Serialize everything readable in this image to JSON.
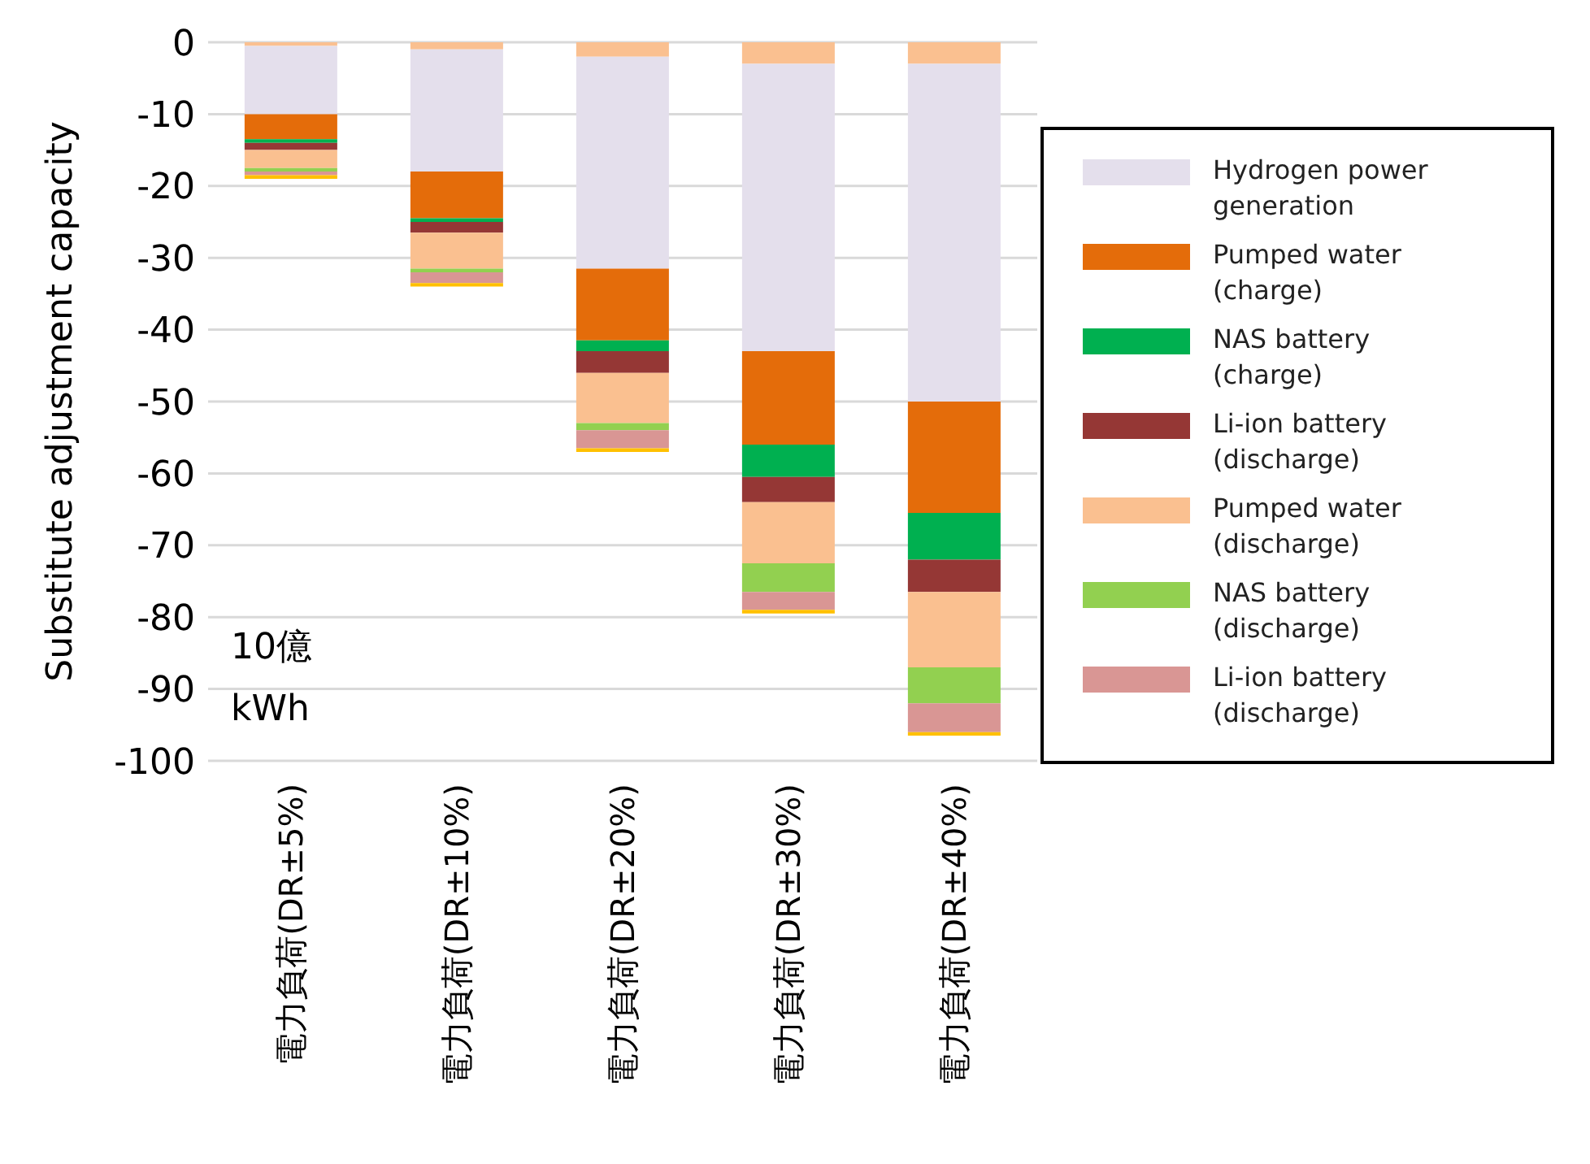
{
  "chart_data": {
    "type": "bar",
    "stacked": true,
    "ylabel": "Substitute adjustment capacity",
    "annotations": [
      "10億 kWh"
    ],
    "categories": [
      "電力負荷(DR±5%)",
      "電力負荷(DR±10%)",
      "電力負荷(DR±20%)",
      "電力負荷(DR±30%)",
      "電力負荷(DR±40%)"
    ],
    "series": [
      {
        "color": "#fac090",
        "values": [
          -0.5,
          -1,
          -2,
          -3,
          -3
        ]
      },
      {
        "name": "Hydrogen power generation",
        "color": "#e4dfec",
        "values": [
          -9.5,
          -17,
          -29.5,
          -40,
          -47
        ]
      },
      {
        "name": "Pumped water (charge)",
        "color": "#e46c0a",
        "values": [
          -3.5,
          -6.5,
          -10,
          -13,
          -15.5
        ]
      },
      {
        "name": "NAS battery (charge)",
        "color": "#00b050",
        "values": [
          -0.5,
          -0.5,
          -1.5,
          -4.5,
          -6.5
        ]
      },
      {
        "name": "Li-ion battery (discharge)",
        "color": "#953735",
        "values": [
          -1,
          -1.5,
          -3,
          -3.5,
          -4.5
        ]
      },
      {
        "name": "Pumped water (discharge)",
        "color": "#fac090",
        "values": [
          -2.5,
          -5,
          -7,
          -8.5,
          -10.5
        ]
      },
      {
        "name": "NAS battery (discharge)",
        "color": "#92d050",
        "values": [
          -0.5,
          -0.5,
          -1,
          -4,
          -5
        ]
      },
      {
        "name": "Li-ion battery (discharge)",
        "color": "#d99694",
        "values": [
          -0.5,
          -1.5,
          -2.5,
          -2.5,
          -4
        ]
      },
      {
        "color": "#ffc000",
        "values": [
          -0.5,
          -0.5,
          -0.5,
          -0.5,
          -0.5
        ]
      }
    ],
    "ylim": [
      -100,
      0
    ],
    "yticks": [
      0,
      -10,
      -20,
      -30,
      -40,
      -50,
      -60,
      -70,
      -80,
      -90,
      -100
    ],
    "grid": "y",
    "legend": "right"
  }
}
